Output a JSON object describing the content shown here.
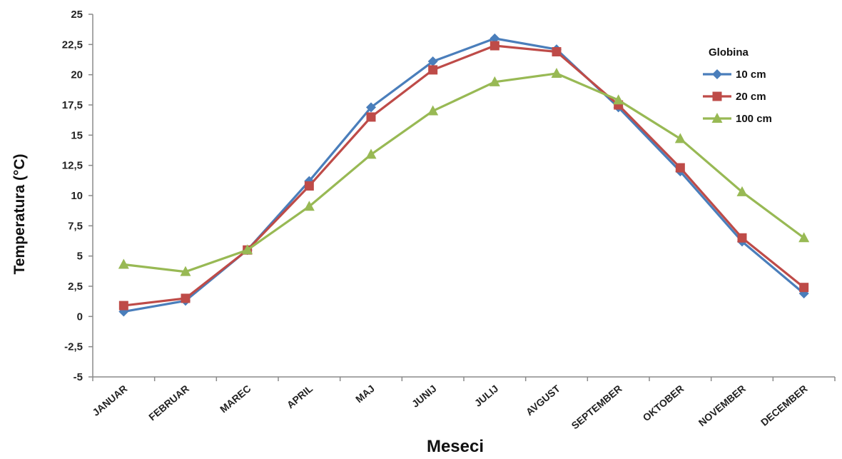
{
  "chart_data": {
    "type": "line",
    "title": "",
    "xlabel": "Meseci",
    "ylabel": "Temperatura (°C)",
    "categories": [
      "JANUAR",
      "FEBRUAR",
      "MAREC",
      "APRIL",
      "MAJ",
      "JUNIJ",
      "JULIJ",
      "AVGUST",
      "SEPTEMBER",
      "OKTOBER",
      "NOVEMBER",
      "DECEMBER"
    ],
    "ylim": [
      -5,
      25
    ],
    "yticks": [
      -5,
      -2.5,
      0,
      2.5,
      5,
      7.5,
      10,
      12.5,
      15,
      17.5,
      20,
      22.5,
      25
    ],
    "ytick_labels": [
      "-5",
      "-2,5",
      "0",
      "2,5",
      "5",
      "7,5",
      "10",
      "12,5",
      "15",
      "17,5",
      "20",
      "22,5",
      "25"
    ],
    "grid": false,
    "legend": {
      "title": "Globina",
      "position": "right"
    },
    "series": [
      {
        "name": "10 cm",
        "color": "#4a7ebb",
        "marker": "diamond",
        "values": [
          0.4,
          1.3,
          5.5,
          11.2,
          17.3,
          21.1,
          23.0,
          22.1,
          17.3,
          12.0,
          6.2,
          1.9
        ]
      },
      {
        "name": "20 cm",
        "color": "#be4b48",
        "marker": "square",
        "values": [
          0.9,
          1.5,
          5.5,
          10.8,
          16.5,
          20.4,
          22.4,
          21.9,
          17.5,
          12.3,
          6.5,
          2.4
        ]
      },
      {
        "name": "100 cm",
        "color": "#98b954",
        "marker": "triangle",
        "values": [
          4.3,
          3.7,
          5.5,
          9.1,
          13.4,
          17.0,
          19.4,
          20.1,
          17.9,
          14.7,
          10.3,
          6.5
        ]
      }
    ]
  }
}
